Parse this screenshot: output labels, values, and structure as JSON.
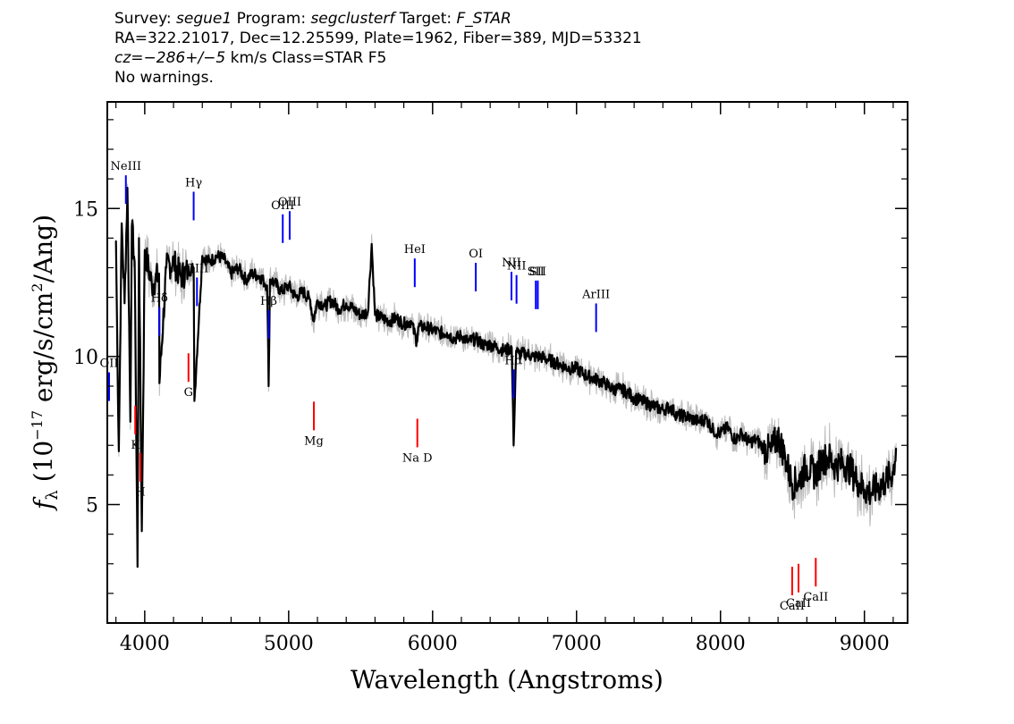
{
  "header": {
    "line1": [
      {
        "t": "Survey: ",
        "i": false
      },
      {
        "t": "segue1",
        "i": true
      },
      {
        "t": " Program: ",
        "i": false
      },
      {
        "t": "segclusterf",
        "i": true
      },
      {
        "t": " Target: ",
        "i": false
      },
      {
        "t": "F_STAR",
        "i": true
      }
    ],
    "line2": "RA=322.21017, Dec=12.25599, Plate=1962, Fiber=389, MJD=53321",
    "line3": [
      {
        "t": "cz=",
        "i": true
      },
      {
        "t": "−286+/−5",
        "i": true
      },
      {
        "t": " km/s Class=STAR F5",
        "i": false
      }
    ],
    "line4": "No warnings."
  },
  "chart_data": {
    "type": "line",
    "xlabel": "Wavelength (Angstroms)",
    "ylabel": {
      "main": "f",
      "sub": "λ",
      "rest": " (10",
      "exp": "−17",
      "rest2": " erg/s/cm",
      "exp2": "2",
      "rest3": "/Ang)"
    },
    "xlim": [
      3740,
      9300
    ],
    "ylim": [
      1.0,
      18.6
    ],
    "xticks": [
      4000,
      5000,
      6000,
      7000,
      8000,
      9000
    ],
    "xtick_labels": [
      "4000",
      "5000",
      "6000",
      "7000",
      "8000",
      "9000"
    ],
    "yticks": [
      5,
      10,
      15
    ],
    "ytick_labels": [
      "5",
      "10",
      "15"
    ],
    "colors": {
      "flux": "#000000",
      "error": "#bdbdbd",
      "emission": "#0000ff",
      "absorption": "#ff0000",
      "axis": "#000000"
    },
    "flux": {
      "x": [
        3800,
        3820,
        3840,
        3860,
        3880,
        3900,
        3910,
        3930,
        3950,
        3960,
        3980,
        4000,
        4050,
        4100,
        4102,
        4150,
        4200,
        4250,
        4300,
        4340,
        4345,
        4400,
        4450,
        4500,
        4550,
        4600,
        4650,
        4700,
        4750,
        4800,
        4850,
        4861,
        4870,
        4900,
        4950,
        5000,
        5050,
        5100,
        5150,
        5172,
        5200,
        5250,
        5300,
        5350,
        5400,
        5450,
        5500,
        5550,
        5577,
        5600,
        5650,
        5700,
        5750,
        5800,
        5850,
        5890,
        5900,
        5950,
        6000,
        6050,
        6100,
        6150,
        6200,
        6250,
        6300,
        6350,
        6400,
        6450,
        6500,
        6550,
        6563,
        6580,
        6600,
        6650,
        6700,
        6750,
        6800,
        6850,
        6900,
        6950,
        7000,
        7050,
        7100,
        7150,
        7200,
        7250,
        7300,
        7350,
        7400,
        7450,
        7500,
        7550,
        7600,
        7650,
        7700,
        7750,
        7800,
        7850,
        7900,
        7950,
        8000,
        8050,
        8100,
        8150,
        8200,
        8250,
        8300,
        8350,
        8400,
        8450,
        8498,
        8542,
        8600,
        8662,
        8700,
        8750,
        8800,
        8850,
        8900,
        8950,
        9000,
        9050,
        9100,
        9150,
        9200,
        9220
      ],
      "y": [
        13.9,
        6.8,
        14.5,
        11.8,
        15.7,
        7.8,
        14.4,
        13.2,
        2.9,
        14.0,
        4.1,
        13.6,
        12.4,
        12.8,
        9.1,
        13.0,
        13.2,
        12.7,
        12.9,
        13.0,
        8.5,
        13.4,
        13.2,
        13.4,
        13.3,
        12.8,
        13.0,
        12.6,
        12.8,
        12.7,
        12.4,
        9.0,
        12.6,
        12.5,
        12.2,
        12.4,
        12.0,
        12.2,
        11.9,
        11.2,
        11.9,
        11.7,
        11.9,
        11.6,
        11.8,
        11.6,
        11.4,
        11.5,
        13.8,
        11.4,
        11.3,
        11.2,
        11.3,
        11.1,
        11.2,
        10.5,
        11.0,
        11.0,
        10.9,
        10.8,
        10.8,
        10.6,
        10.7,
        10.5,
        10.6,
        10.4,
        10.4,
        10.3,
        10.2,
        10.3,
        7.0,
        10.2,
        10.1,
        10.1,
        10.0,
        10.0,
        9.9,
        9.8,
        9.7,
        9.6,
        9.6,
        9.4,
        9.3,
        9.2,
        9.1,
        8.9,
        8.9,
        8.8,
        8.6,
        8.5,
        8.4,
        8.3,
        8.2,
        8.3,
        8.0,
        8.0,
        7.9,
        7.8,
        7.9,
        7.5,
        7.4,
        7.6,
        7.2,
        7.4,
        7.1,
        7.2,
        6.9,
        6.8,
        7.3,
        6.6,
        5.7,
        5.8,
        6.3,
        6.0,
        6.5,
        6.6,
        6.3,
        6.4,
        6.2,
        5.8,
        5.5,
        5.4,
        5.6,
        5.8,
        6.1,
        6.9
      ]
    },
    "emission_lines": [
      {
        "label": "NeIII",
        "x": 3869
      },
      {
        "label": "OII",
        "x": 3727
      },
      {
        "label": "Hδ",
        "x": 4102
      },
      {
        "label": "Hγ",
        "x": 4340
      },
      {
        "label": "OIII",
        "x": 4363
      },
      {
        "label": "Hβ",
        "x": 4861
      },
      {
        "label": "OIII",
        "x": 4959
      },
      {
        "label": "OIII",
        "x": 5007
      },
      {
        "label": "HeI",
        "x": 5876
      },
      {
        "label": "OI",
        "x": 6300
      },
      {
        "label": "NII",
        "x": 6548
      },
      {
        "label": "Hα",
        "x": 6563
      },
      {
        "label": "NII",
        "x": 6583
      },
      {
        "label": "SII",
        "x": 6717
      },
      {
        "label": "SII",
        "x": 6731
      },
      {
        "label": "ArIII",
        "x": 7136
      }
    ],
    "absorption_lines": [
      {
        "label": "K",
        "x": 3934
      },
      {
        "label": "H",
        "x": 3969
      },
      {
        "label": "G",
        "x": 4304
      },
      {
        "label": "Mg",
        "x": 5175
      },
      {
        "label": "Na D",
        "x": 5894
      },
      {
        "label": "CaII",
        "x": 8498
      },
      {
        "label": "CaII",
        "x": 8542
      },
      {
        "label": "CaII",
        "x": 8662
      }
    ]
  }
}
